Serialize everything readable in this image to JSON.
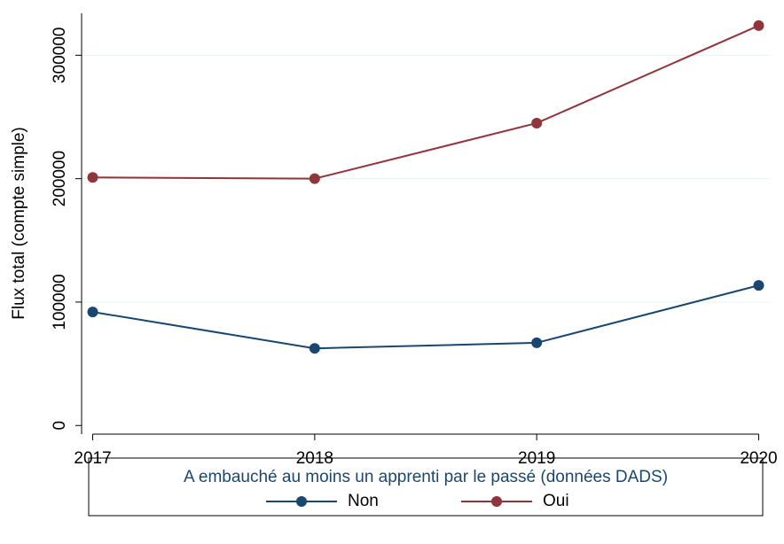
{
  "chart_data": {
    "type": "line",
    "x": [
      2017,
      2018,
      2019,
      2020
    ],
    "xlim": [
      2016.95,
      2020.05
    ],
    "xticks": [
      2017,
      2018,
      2019,
      2020
    ],
    "ylim": [
      -7000,
      334000
    ],
    "yticks": [
      0,
      100000,
      200000,
      300000
    ],
    "ylabel": "Flux total (compte simple)",
    "grid": true,
    "legend_title": "A embauché au moins un apprenti par le passé (données DADS)",
    "legend_position": "bottom",
    "series": [
      {
        "name": "Non",
        "color": "#1a476f",
        "values": [
          92000,
          62500,
          67000,
          113500
        ]
      },
      {
        "name": "Oui",
        "color": "#90353b",
        "values": [
          201000,
          200000,
          245000,
          324000
        ]
      }
    ]
  }
}
